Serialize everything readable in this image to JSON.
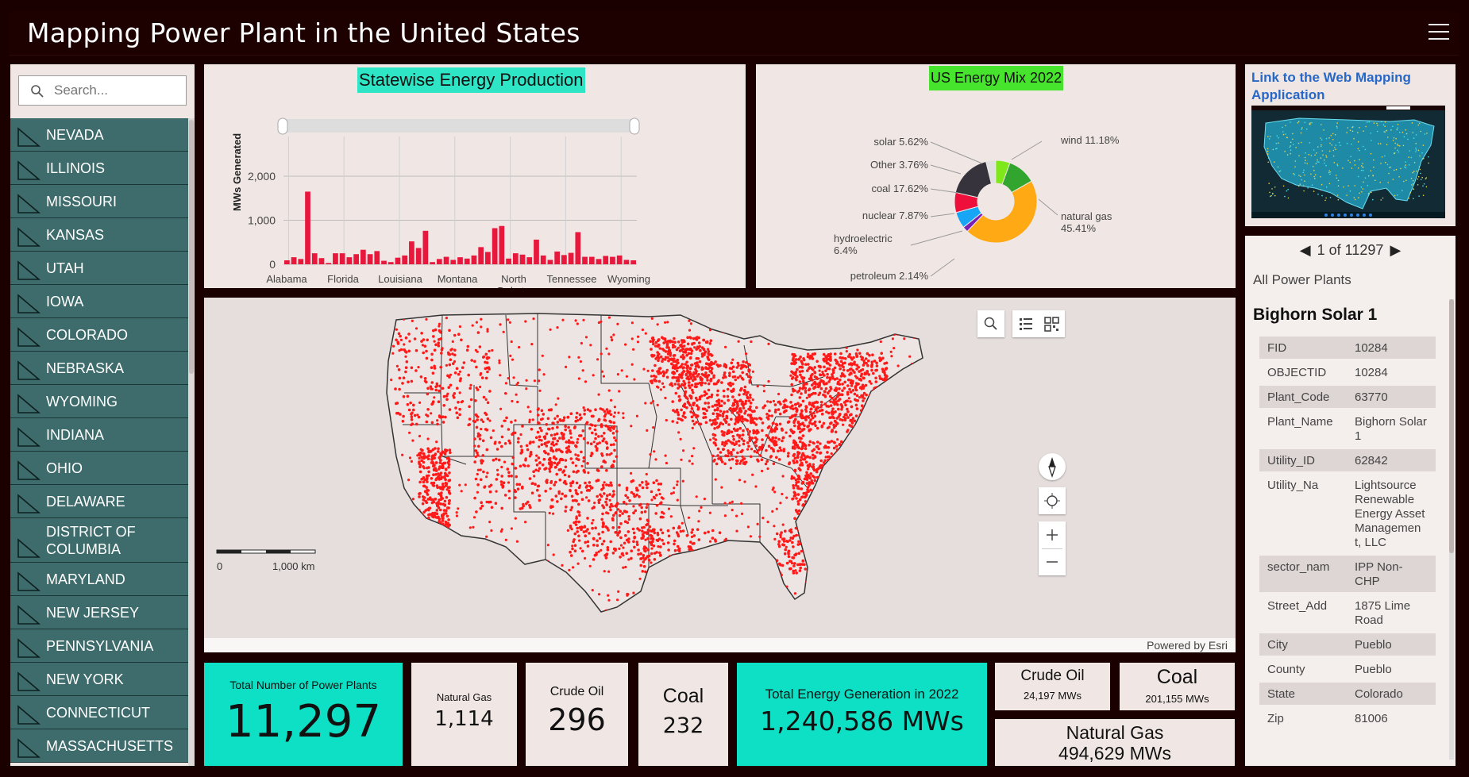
{
  "app": {
    "title": "Mapping Power Plant in the United States"
  },
  "search": {
    "placeholder": "Search..."
  },
  "states": [
    "NEVADA",
    "ILLINOIS",
    "MISSOURI",
    "KANSAS",
    "UTAH",
    "IOWA",
    "COLORADO",
    "NEBRASKA",
    "WYOMING",
    "INDIANA",
    "OHIO",
    "DELAWARE",
    "DISTRICT OF COLUMBIA",
    "MARYLAND",
    "NEW JERSEY",
    "PENNSYLVANIA",
    "NEW YORK",
    "CONNECTICUT",
    "MASSACHUSETTS"
  ],
  "bar_chart": {
    "title": "Statewise Energy Production",
    "ylabel": "MWs Generated"
  },
  "pie_chart": {
    "title": "US Energy Mix 2022"
  },
  "chart_data": [
    {
      "type": "bar",
      "title": "Statewise Energy Production",
      "ylabel": "MWs Generated",
      "ylim": [
        0,
        2000
      ],
      "yticks": [
        "0",
        "1,000",
        "2,000"
      ],
      "tick_labels": [
        "Alabama",
        "Florida",
        "Louisiana",
        "Montana",
        "North Dakota",
        "Tennessee",
        "Wyoming"
      ],
      "bar_color": "#e8173c",
      "values": [
        90,
        160,
        120,
        1650,
        250,
        140,
        30,
        250,
        250,
        160,
        230,
        330,
        230,
        300,
        80,
        50,
        150,
        200,
        520,
        370,
        760,
        50,
        120,
        170,
        100,
        160,
        130,
        200,
        390,
        280,
        820,
        870,
        130,
        250,
        220,
        160,
        560,
        200,
        100,
        290,
        210,
        260,
        730,
        170,
        170,
        120,
        190,
        170,
        200,
        100,
        90
      ]
    },
    {
      "type": "pie",
      "title": "US Energy Mix 2022",
      "donut": true,
      "labels": [
        "wind",
        "natural gas",
        "petroleum",
        "hydroelectric",
        "nuclear",
        "coal",
        "Other",
        "solar"
      ],
      "label_text": [
        "wind 11.18%",
        "natural gas 45.41%",
        "petroleum 2.14%",
        "hydroelectric 6.4%",
        "nuclear 7.87%",
        "coal 17.62%",
        "Other 3.76%",
        "solar 5.62%"
      ],
      "values": [
        11.18,
        45.41,
        2.14,
        6.4,
        7.87,
        17.62,
        3.76,
        5.62
      ],
      "colors": [
        "#32a52e",
        "#ffa914",
        "#7a1fb5",
        "#16a6f5",
        "#ee0f3a",
        "#36333d",
        "#e0e0e0",
        "#7ee81a"
      ]
    }
  ],
  "link_panel": {
    "label": "Link to the Web Mapping Application"
  },
  "popup": {
    "pager": "1 of 11297",
    "layer": "All Power Plants",
    "title": "Bighorn Solar 1",
    "fields": [
      {
        "k": "FID",
        "v": "10284"
      },
      {
        "k": "OBJECTID",
        "v": "10284"
      },
      {
        "k": "Plant_Code",
        "v": "63770"
      },
      {
        "k": "Plant_Name",
        "v": "Bighorn Solar 1"
      },
      {
        "k": "Utility_ID",
        "v": "62842"
      },
      {
        "k": "Utility_Na",
        "v": "Lightsource Renewable Energy Asset Managemen t, LLC"
      },
      {
        "k": "sector_nam",
        "v": "IPP Non-CHP"
      },
      {
        "k": "Street_Add",
        "v": "1875 Lime Road"
      },
      {
        "k": "City",
        "v": "Pueblo"
      },
      {
        "k": "County",
        "v": "Pueblo"
      },
      {
        "k": "State",
        "v": "Colorado"
      },
      {
        "k": "Zip",
        "v": "81006"
      }
    ]
  },
  "map": {
    "scale_zero": "0",
    "scale_label": "1,000 km",
    "attribution": "Powered by Esri",
    "point_color": "#ff1a1a",
    "icons": [
      "search-icon",
      "list-icon",
      "qr-icon",
      "compass-icon",
      "locate-icon",
      "zoom-in-icon",
      "zoom-out-icon"
    ]
  },
  "stats": {
    "total_plants_label": "Total Number of Power Plants",
    "total_plants_value": "11,297",
    "natural_gas_label": "Natural Gas",
    "natural_gas_value": "1,114",
    "crude_oil_label": "Crude Oil",
    "crude_oil_value": "296",
    "coal_label": "Coal",
    "coal_value": "232",
    "total_energy_label": "Total Energy Generation in 2022",
    "total_energy_value": "1,240,586 MWs",
    "crude_oil_mw_label": "Crude Oil",
    "crude_oil_mw_value": "24,197 MWs",
    "coal_mw_label": "Coal",
    "coal_mw_value": "201,155 MWs",
    "natural_gas_mw_label": "Natural Gas",
    "natural_gas_mw_value": "494,629 MWs"
  },
  "colors": {
    "accent": "#0de0c4",
    "panel": "#f0e7e5",
    "sidebar_item": "#3e6b6b",
    "background": "#1b0000",
    "link": "#2767c7"
  }
}
